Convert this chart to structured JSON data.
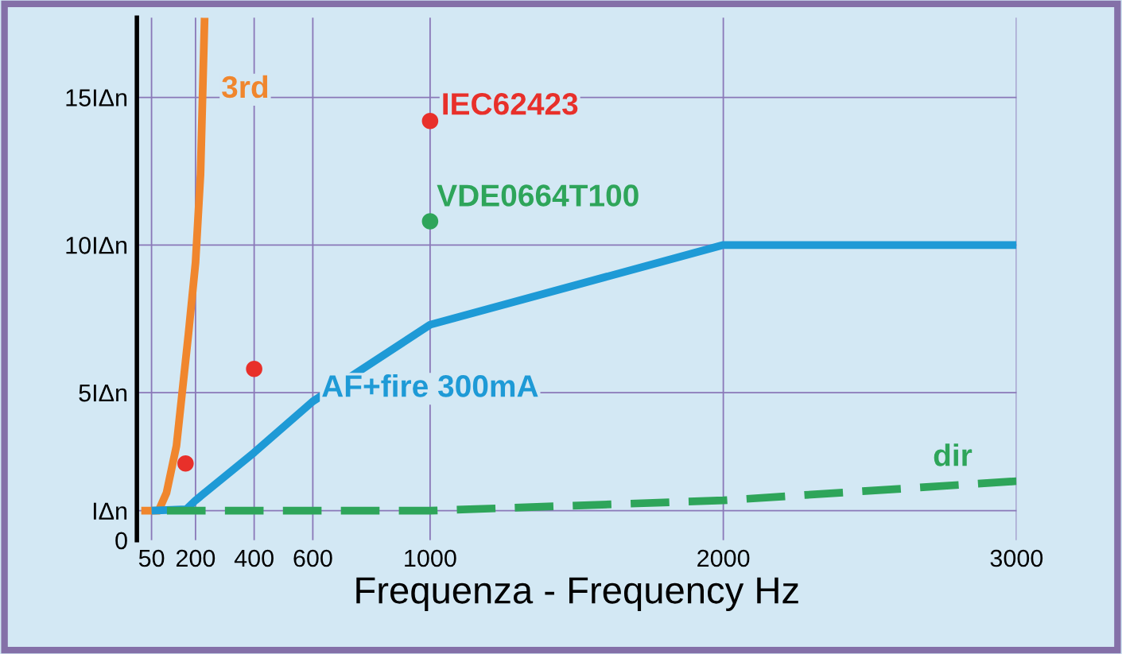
{
  "chart_data": {
    "type": "line",
    "xlabel": "Frequenza - Frequency Hz",
    "xlim": [
      0,
      3000
    ],
    "xticks": [
      50,
      200,
      400,
      600,
      1000,
      2000,
      3000
    ],
    "ylim": [
      0,
      17.7
    ],
    "yticks": [
      {
        "value": 0,
        "label": "0"
      },
      {
        "value": 1,
        "label": "IΔn"
      },
      {
        "value": 5,
        "label": "5IΔn"
      },
      {
        "value": 10,
        "label": "10IΔn"
      },
      {
        "value": 15,
        "label": "15IΔn"
      }
    ],
    "grid": true,
    "series": [
      {
        "name": "3rd",
        "color": "#f0862d",
        "x": [
          15,
          74,
          101,
          135,
          176,
          200,
          217,
          231
        ],
        "values": [
          1,
          1,
          1.6,
          3.2,
          7.0,
          9.4,
          12.4,
          17.7
        ]
      },
      {
        "name": "AF+fire 300mA",
        "color": "#1e9ad6",
        "x": [
          50,
          169,
          200,
          400,
          600,
          1000,
          2000,
          3000
        ],
        "values": [
          1,
          1.05,
          1.35,
          2.97,
          4.7,
          7.3,
          10,
          10
        ]
      },
      {
        "name": "dir",
        "color": "#2ea55a",
        "line_style": "dashed",
        "x": [
          50,
          1000,
          2000,
          3000
        ],
        "values": [
          1,
          1,
          1.35,
          2.0
        ]
      },
      {
        "name": "IEC62423",
        "type": "scatter",
        "color": "#e8302a",
        "x": [
          166,
          400,
          1000
        ],
        "values": [
          2.6,
          5.8,
          14.2
        ]
      },
      {
        "name": "VDE0664T100",
        "type": "scatter",
        "color": "#2ea55a",
        "x": [
          1000
        ],
        "values": [
          10.8
        ]
      }
    ]
  }
}
